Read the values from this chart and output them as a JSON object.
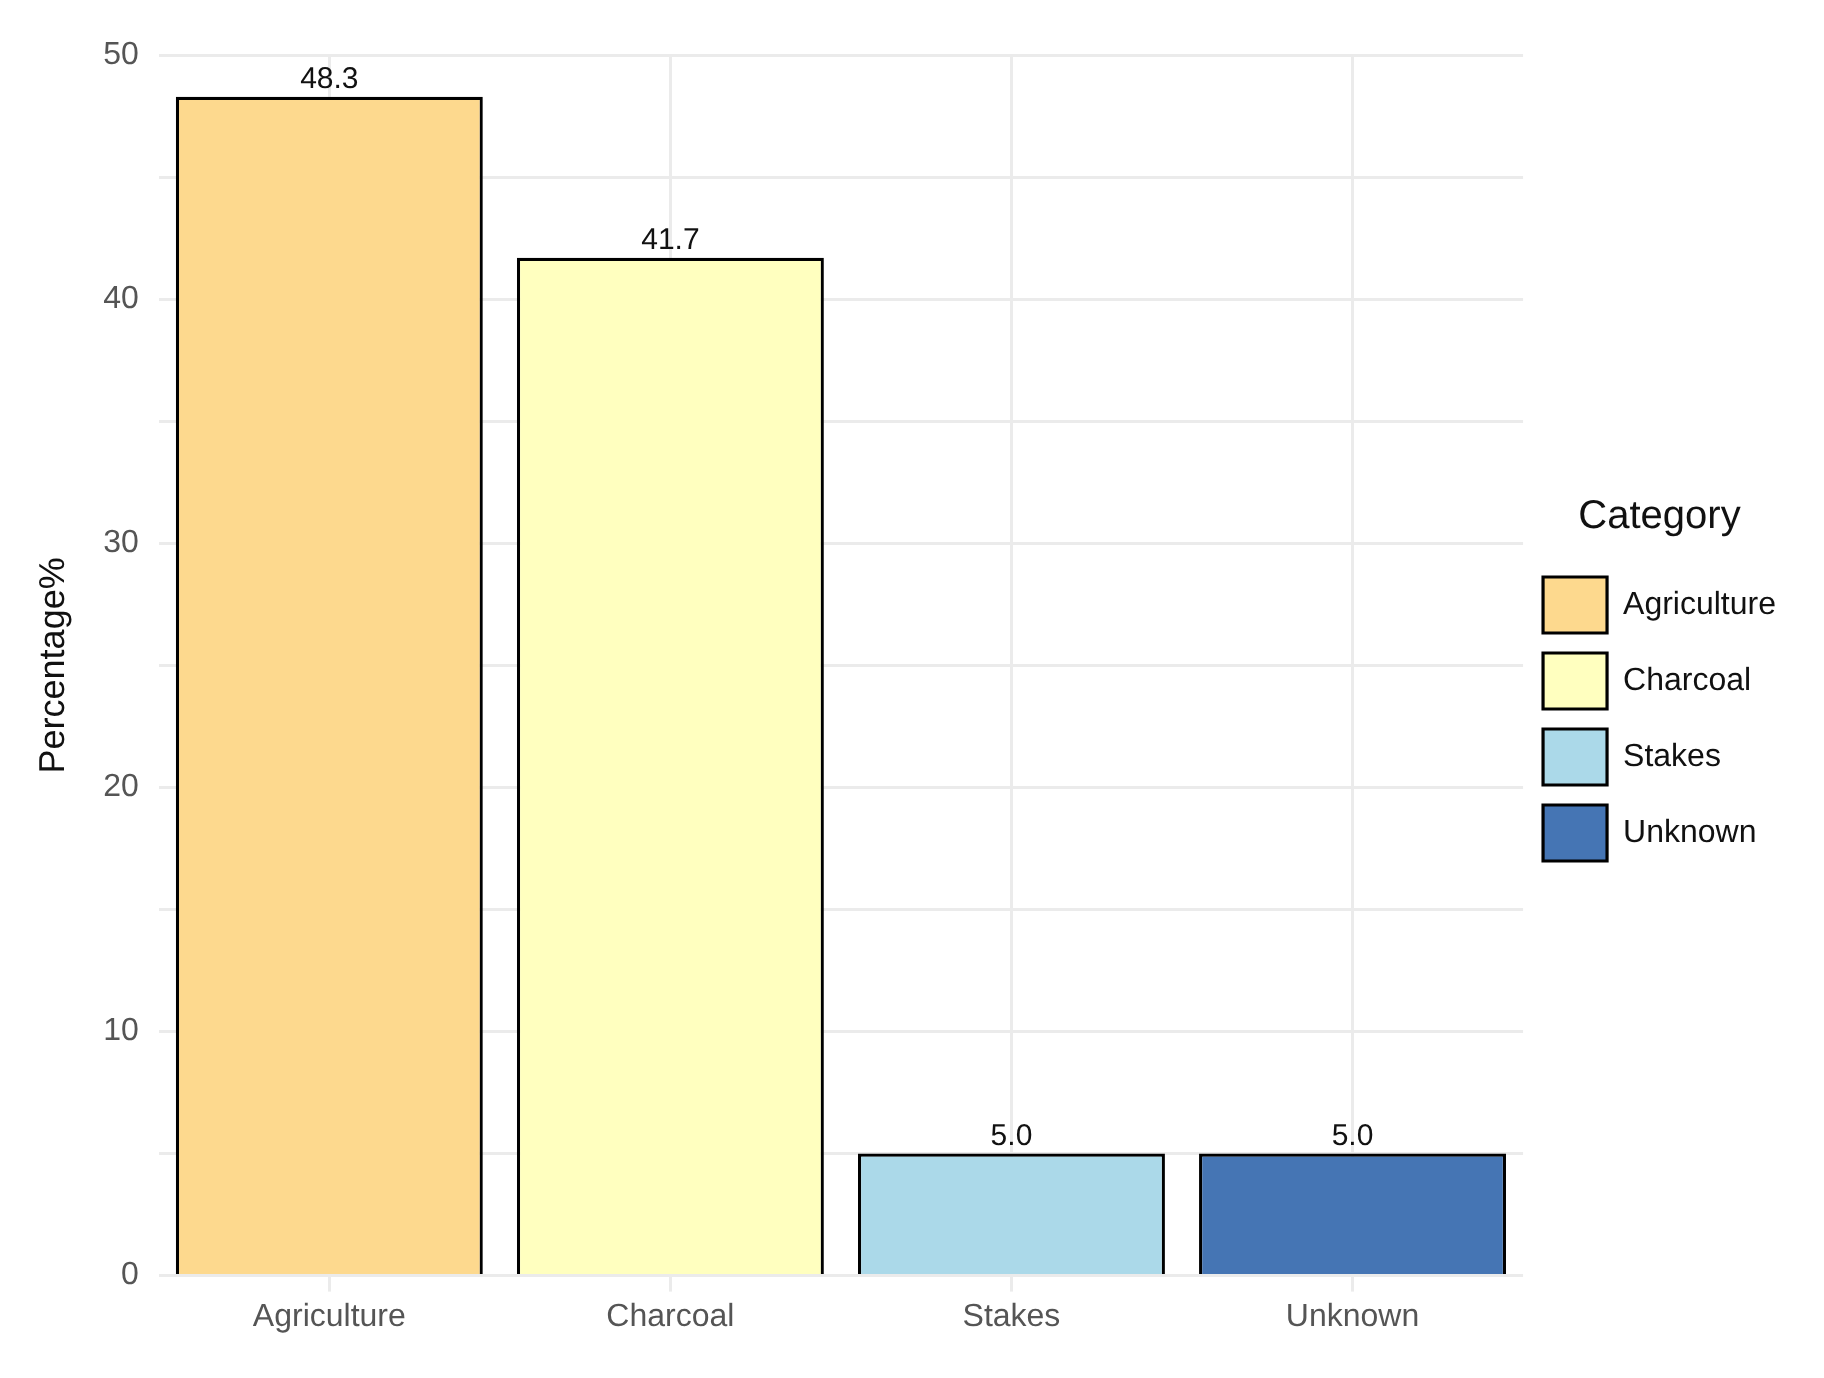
{
  "chart_data": {
    "type": "bar",
    "ylabel": "Percentage%",
    "legend_title": "Category",
    "categories": [
      "Agriculture",
      "Charcoal",
      "Stakes",
      "Unknown"
    ],
    "series": [
      {
        "name": "Agriculture",
        "color": "#fdd98e",
        "values": [
          48.3,
          null,
          null,
          null
        ],
        "value_labels": [
          "48.3",
          null,
          null,
          null
        ]
      },
      {
        "name": "Charcoal",
        "color": "#ffffbf",
        "values": [
          null,
          41.7,
          null,
          null
        ],
        "value_labels": [
          null,
          "41.7",
          null,
          null
        ]
      },
      {
        "name": "Stakes",
        "color": "#abd9e9",
        "values": [
          null,
          null,
          5.0,
          null
        ],
        "value_labels": [
          null,
          null,
          "5.0",
          null
        ]
      },
      {
        "name": "Unknown",
        "color": "#4575b4",
        "values": [
          null,
          null,
          null,
          5.0
        ],
        "value_labels": [
          null,
          null,
          null,
          "5.0"
        ]
      }
    ],
    "ylim": [
      0,
      50
    ],
    "yticks": [
      0,
      {
        "value": 5,
        "label": null
      },
      10,
      {
        "value": 15,
        "label": null
      },
      20,
      {
        "value": 25,
        "label": null
      },
      30,
      {
        "value": 35,
        "label": null
      },
      40,
      {
        "value": 45,
        "label": null
      },
      50
    ],
    "grid": true,
    "legend": "right"
  }
}
